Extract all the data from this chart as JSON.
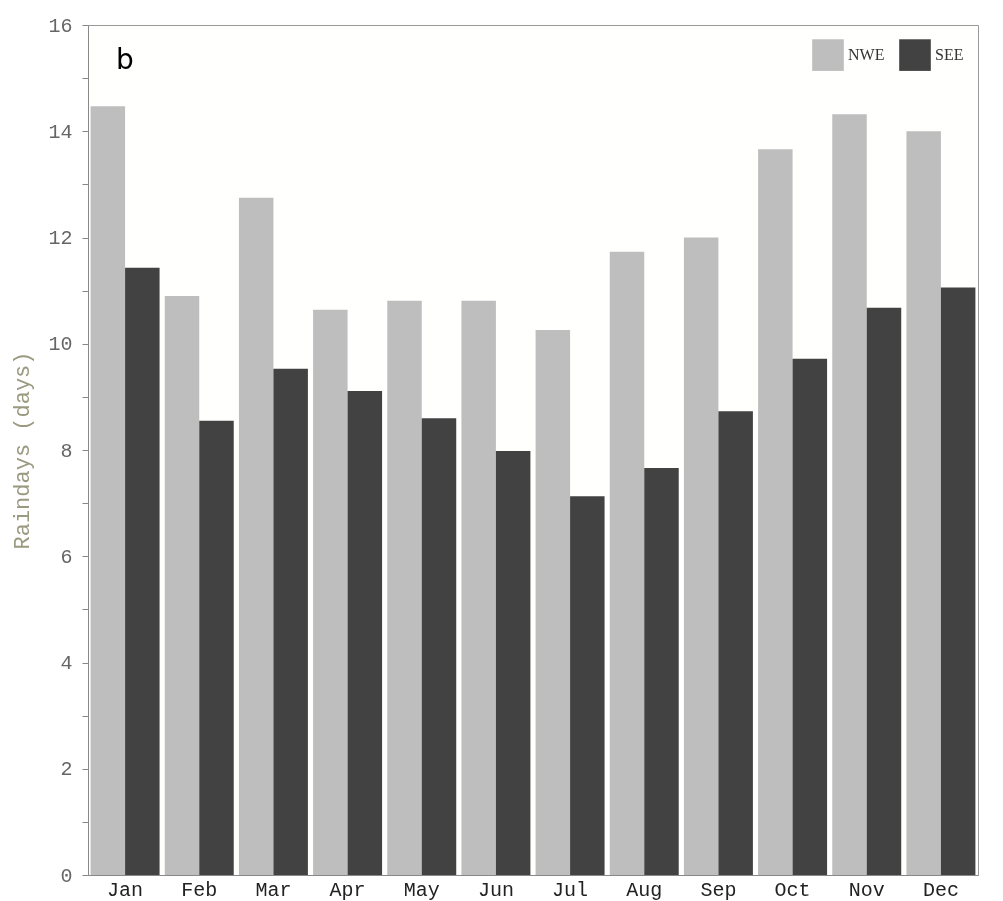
{
  "chart_data": {
    "type": "bar",
    "ylabel": "Raindays (days)",
    "annotations": [
      "b"
    ],
    "categories": [
      "Jan",
      "Feb",
      "Mar",
      "Apr",
      "May",
      "Jun",
      "Jul",
      "Aug",
      "Sep",
      "Oct",
      "Nov",
      "Dec"
    ],
    "series": [
      {
        "name": "NWE",
        "color": "#bebebe",
        "values": [
          14.47,
          10.9,
          12.75,
          10.64,
          10.81,
          10.81,
          10.26,
          11.73,
          12.0,
          13.66,
          14.32,
          14.0
        ]
      },
      {
        "name": "SEE",
        "color": "#424242",
        "values": [
          11.43,
          8.55,
          9.53,
          9.11,
          8.6,
          7.98,
          7.13,
          7.66,
          8.73,
          9.72,
          10.68,
          11.06
        ]
      }
    ],
    "ylim": [
      0,
      16
    ],
    "yticks": [
      0,
      {
        "value": 1,
        "label": null
      },
      2,
      {
        "value": 3,
        "label": null
      },
      4,
      {
        "value": 5,
        "label": null
      },
      6,
      {
        "value": 7,
        "label": null
      },
      8,
      {
        "value": 9,
        "label": null
      },
      10,
      {
        "value": 11,
        "label": null
      },
      12,
      {
        "value": 13,
        "label": null
      },
      14,
      {
        "value": 15,
        "label": null
      },
      16
    ],
    "grid": false,
    "legend": "top right"
  }
}
